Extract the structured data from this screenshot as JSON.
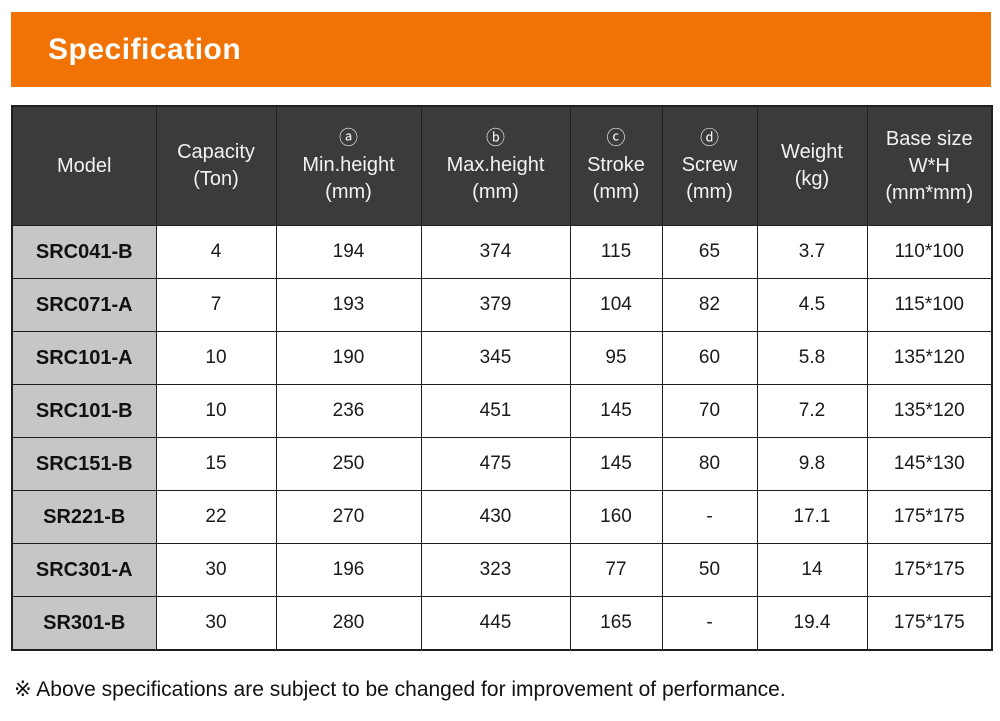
{
  "header": {
    "title": "Specification",
    "bg_color": "#F17305",
    "text_color": "#FFFFFF"
  },
  "table": {
    "header_bg": "#3B3B3B",
    "header_text_color": "#F2F2F2",
    "model_column_bg": "#C6C6C6",
    "border_color": "#1F1F1F",
    "columns": [
      {
        "id": "model",
        "lines": [
          "Model"
        ]
      },
      {
        "id": "capacity",
        "lines": [
          "Capacity",
          "(Ton)"
        ]
      },
      {
        "id": "min_height",
        "lines": [
          "ⓐ",
          "Min.height",
          "(mm)"
        ]
      },
      {
        "id": "max_height",
        "lines": [
          "ⓑ",
          "Max.height",
          "(mm)"
        ]
      },
      {
        "id": "stroke",
        "lines": [
          "ⓒ",
          "Stroke",
          "(mm)"
        ]
      },
      {
        "id": "screw",
        "lines": [
          "ⓓ",
          "Screw",
          "(mm)"
        ]
      },
      {
        "id": "weight",
        "lines": [
          "Weight",
          "(kg)"
        ]
      },
      {
        "id": "base_size",
        "lines": [
          "Base size",
          "W*H",
          "(mm*mm)"
        ]
      }
    ],
    "rows": [
      {
        "model": "SRC041-B",
        "capacity": "4",
        "min_height": "194",
        "max_height": "374",
        "stroke": "115",
        "screw": "65",
        "weight": "3.7",
        "base_size": "110*100"
      },
      {
        "model": "SRC071-A",
        "capacity": "7",
        "min_height": "193",
        "max_height": "379",
        "stroke": "104",
        "screw": "82",
        "weight": "4.5",
        "base_size": "115*100"
      },
      {
        "model": "SRC101-A",
        "capacity": "10",
        "min_height": "190",
        "max_height": "345",
        "stroke": "95",
        "screw": "60",
        "weight": "5.8",
        "base_size": "135*120"
      },
      {
        "model": "SRC101-B",
        "capacity": "10",
        "min_height": "236",
        "max_height": "451",
        "stroke": "145",
        "screw": "70",
        "weight": "7.2",
        "base_size": "135*120"
      },
      {
        "model": "SRC151-B",
        "capacity": "15",
        "min_height": "250",
        "max_height": "475",
        "stroke": "145",
        "screw": "80",
        "weight": "9.8",
        "base_size": "145*130"
      },
      {
        "model": "SR221-B",
        "capacity": "22",
        "min_height": "270",
        "max_height": "430",
        "stroke": "160",
        "screw": "-",
        "weight": "17.1",
        "base_size": "175*175"
      },
      {
        "model": "SRC301-A",
        "capacity": "30",
        "min_height": "196",
        "max_height": "323",
        "stroke": "77",
        "screw": "50",
        "weight": "14",
        "base_size": "175*175"
      },
      {
        "model": "SR301-B",
        "capacity": "30",
        "min_height": "280",
        "max_height": "445",
        "stroke": "165",
        "screw": "-",
        "weight": "19.4",
        "base_size": "175*175"
      }
    ]
  },
  "footnote": {
    "text": "※ Above specifications are subject to be changed for improvement of performance."
  }
}
